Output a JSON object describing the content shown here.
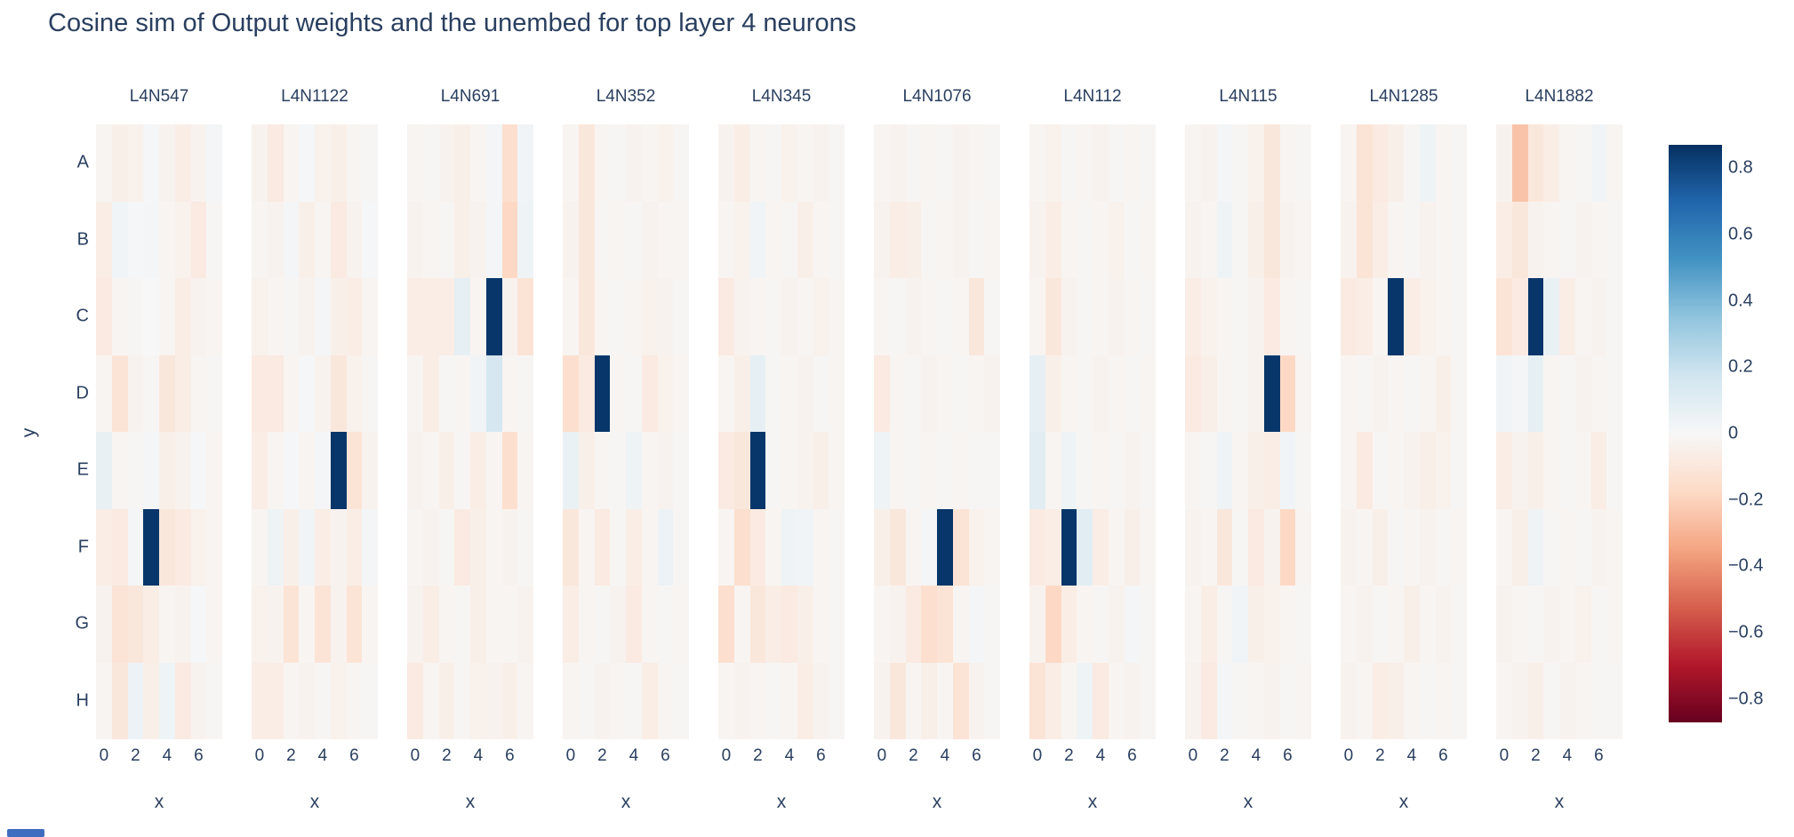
{
  "title": "Cosine sim of Output weights and the unembed for top layer 4 neurons",
  "colors": {
    "text": "#2a3f5f",
    "background": "#ffffff",
    "colorscale_rdbu": [
      "#67001f",
      "#b2182b",
      "#d6604d",
      "#f4a582",
      "#fddbc7",
      "#f7f7f7",
      "#d1e5f0",
      "#92c5de",
      "#4393c3",
      "#2166ac",
      "#053061"
    ]
  },
  "chart_data": {
    "type": "heatmap",
    "title": "Cosine sim of Output weights and the unembed for top layer 4 neurons",
    "xlabel": "x",
    "ylabel": "y",
    "x_tick_labels": [
      "0",
      "2",
      "4",
      "6"
    ],
    "x_tick_values": [
      0,
      2,
      4,
      6
    ],
    "x_range": [
      0,
      7
    ],
    "y_categories": [
      "A",
      "B",
      "C",
      "D",
      "E",
      "F",
      "G",
      "H"
    ],
    "zmin": -0.87,
    "zmax": 0.87,
    "legend_position": "right colorbar",
    "colorbar_tick_labels": [
      "0.8",
      "0.6",
      "0.4",
      "0.2",
      "0",
      "−0.2",
      "−0.4",
      "−0.6",
      "−0.8"
    ],
    "colorbar_tick_values": [
      0.8,
      0.6,
      0.4,
      0.2,
      0,
      -0.2,
      -0.4,
      -0.6,
      -0.8
    ],
    "facets": [
      {
        "name": "L4N547",
        "peak": {
          "x": 3,
          "y": "F",
          "value": 0.85
        },
        "z": [
          [
            -0.02,
            -0.05,
            -0.04,
            0.01,
            -0.03,
            -0.06,
            -0.03,
            0.02
          ],
          [
            -0.06,
            0.03,
            0.01,
            0.02,
            -0.02,
            -0.04,
            -0.08,
            -0.01
          ],
          [
            -0.08,
            -0.02,
            -0.01,
            0.0,
            -0.02,
            -0.06,
            -0.03,
            -0.02
          ],
          [
            -0.02,
            -0.12,
            -0.03,
            -0.01,
            -0.1,
            -0.06,
            -0.02,
            -0.01
          ],
          [
            0.07,
            -0.02,
            -0.01,
            0.02,
            -0.05,
            -0.03,
            0.01,
            -0.02
          ],
          [
            -0.06,
            -0.08,
            0.02,
            0.85,
            -0.1,
            -0.08,
            -0.04,
            -0.02
          ],
          [
            -0.03,
            -0.12,
            -0.1,
            -0.06,
            -0.02,
            -0.03,
            0.01,
            -0.02
          ],
          [
            -0.02,
            -0.1,
            0.05,
            -0.05,
            0.04,
            -0.08,
            -0.03,
            -0.01
          ]
        ]
      },
      {
        "name": "L4N1122",
        "peak": {
          "x": 5,
          "y": "E",
          "value": 0.85
        },
        "z": [
          [
            -0.03,
            -0.08,
            -0.02,
            0.01,
            -0.04,
            -0.05,
            -0.02,
            -0.01
          ],
          [
            -0.02,
            -0.03,
            0.02,
            -0.05,
            -0.02,
            -0.08,
            -0.03,
            0.01
          ],
          [
            -0.04,
            -0.02,
            -0.01,
            -0.03,
            0.02,
            -0.05,
            -0.06,
            -0.02
          ],
          [
            -0.08,
            -0.08,
            -0.02,
            0.01,
            -0.03,
            -0.1,
            -0.04,
            -0.01
          ],
          [
            -0.06,
            -0.02,
            0.01,
            -0.02,
            0.02,
            0.85,
            -0.12,
            -0.03
          ],
          [
            -0.02,
            0.04,
            -0.05,
            0.03,
            -0.06,
            -0.03,
            -0.06,
            0.02
          ],
          [
            -0.04,
            -0.03,
            -0.12,
            -0.02,
            -0.12,
            -0.03,
            -0.12,
            -0.02
          ],
          [
            -0.06,
            -0.06,
            -0.02,
            -0.03,
            -0.01,
            -0.04,
            -0.02,
            -0.01
          ]
        ]
      },
      {
        "name": "L4N691",
        "peak": {
          "x": 5,
          "y": "C",
          "value": 0.85
        },
        "z": [
          [
            -0.02,
            -0.01,
            -0.03,
            -0.05,
            -0.02,
            0.02,
            -0.15,
            0.03
          ],
          [
            -0.03,
            -0.02,
            -0.01,
            -0.05,
            -0.03,
            0.02,
            -0.18,
            0.04
          ],
          [
            -0.06,
            -0.06,
            -0.06,
            0.08,
            -0.02,
            0.85,
            -0.03,
            -0.12
          ],
          [
            -0.02,
            -0.06,
            -0.01,
            -0.02,
            0.03,
            0.15,
            -0.02,
            -0.01
          ],
          [
            -0.03,
            -0.02,
            -0.05,
            -0.01,
            -0.06,
            -0.02,
            -0.15,
            -0.02
          ],
          [
            -0.02,
            -0.03,
            -0.01,
            -0.08,
            -0.05,
            -0.02,
            -0.03,
            -0.01
          ],
          [
            -0.03,
            -0.06,
            -0.02,
            -0.01,
            -0.05,
            -0.02,
            -0.02,
            -0.03
          ],
          [
            -0.08,
            -0.02,
            -0.05,
            -0.01,
            -0.04,
            -0.03,
            -0.05,
            -0.02
          ]
        ]
      },
      {
        "name": "L4N352",
        "peak": {
          "x": 2,
          "y": "D",
          "value": 0.85
        },
        "z": [
          [
            -0.02,
            -0.1,
            -0.02,
            -0.01,
            -0.03,
            -0.02,
            -0.04,
            -0.01
          ],
          [
            -0.03,
            -0.1,
            -0.01,
            -0.02,
            -0.01,
            -0.03,
            -0.02,
            -0.02
          ],
          [
            -0.02,
            -0.1,
            -0.02,
            -0.01,
            -0.02,
            -0.04,
            -0.03,
            -0.01
          ],
          [
            -0.15,
            -0.08,
            0.85,
            -0.02,
            -0.01,
            -0.08,
            -0.04,
            -0.02
          ],
          [
            0.06,
            -0.05,
            -0.02,
            -0.01,
            0.04,
            -0.02,
            -0.03,
            -0.01
          ],
          [
            -0.1,
            -0.02,
            -0.08,
            -0.01,
            -0.06,
            -0.02,
            0.05,
            -0.01
          ],
          [
            -0.06,
            -0.02,
            -0.01,
            -0.03,
            -0.08,
            -0.02,
            -0.01,
            -0.02
          ],
          [
            -0.02,
            -0.01,
            -0.03,
            -0.02,
            -0.01,
            -0.06,
            -0.02,
            -0.01
          ]
        ]
      },
      {
        "name": "L4N345",
        "peak": {
          "x": 2,
          "y": "E",
          "value": 0.85
        },
        "z": [
          [
            -0.03,
            -0.06,
            -0.02,
            -0.01,
            -0.04,
            -0.02,
            -0.03,
            -0.01
          ],
          [
            -0.02,
            -0.04,
            0.03,
            -0.02,
            -0.01,
            -0.05,
            -0.02,
            -0.01
          ],
          [
            -0.08,
            -0.03,
            -0.02,
            -0.01,
            -0.03,
            -0.02,
            -0.04,
            -0.02
          ],
          [
            -0.02,
            -0.05,
            0.08,
            -0.01,
            -0.02,
            -0.03,
            -0.01,
            -0.02
          ],
          [
            -0.08,
            -0.1,
            0.85,
            -0.01,
            -0.02,
            -0.03,
            -0.05,
            -0.02
          ],
          [
            -0.02,
            -0.15,
            -0.08,
            -0.02,
            0.04,
            0.03,
            -0.02,
            -0.01
          ],
          [
            -0.15,
            -0.02,
            -0.1,
            -0.06,
            -0.08,
            -0.05,
            -0.02,
            -0.01
          ],
          [
            -0.02,
            -0.03,
            -0.02,
            -0.01,
            -0.02,
            -0.06,
            -0.03,
            -0.01
          ]
        ]
      },
      {
        "name": "L4N1076",
        "peak": {
          "x": 4,
          "y": "F",
          "value": 0.85
        },
        "z": [
          [
            -0.02,
            -0.03,
            -0.01,
            -0.02,
            -0.01,
            -0.03,
            -0.02,
            -0.01
          ],
          [
            -0.03,
            -0.06,
            -0.05,
            -0.01,
            -0.02,
            -0.03,
            -0.01,
            -0.02
          ],
          [
            -0.02,
            -0.01,
            -0.03,
            -0.02,
            -0.01,
            -0.02,
            -0.1,
            -0.01
          ],
          [
            -0.08,
            -0.02,
            -0.01,
            -0.03,
            -0.02,
            -0.01,
            -0.02,
            -0.03
          ],
          [
            0.04,
            -0.02,
            -0.01,
            -0.02,
            -0.01,
            -0.02,
            -0.01,
            -0.01
          ],
          [
            -0.05,
            -0.1,
            -0.02,
            0.02,
            0.85,
            -0.12,
            -0.04,
            -0.02
          ],
          [
            -0.02,
            -0.03,
            -0.08,
            -0.15,
            -0.12,
            -0.02,
            0.02,
            -0.01
          ],
          [
            -0.03,
            -0.1,
            -0.02,
            -0.05,
            -0.02,
            -0.12,
            -0.03,
            -0.01
          ]
        ]
      },
      {
        "name": "L4N112",
        "peak": {
          "x": 2,
          "y": "F",
          "value": 0.85
        },
        "z": [
          [
            -0.02,
            -0.04,
            -0.01,
            -0.02,
            -0.03,
            -0.01,
            -0.02,
            -0.01
          ],
          [
            -0.03,
            -0.06,
            -0.02,
            -0.01,
            -0.02,
            -0.04,
            -0.01,
            -0.02
          ],
          [
            -0.02,
            -0.1,
            -0.03,
            -0.01,
            -0.02,
            -0.03,
            -0.02,
            -0.01
          ],
          [
            0.08,
            -0.05,
            -0.02,
            -0.01,
            -0.03,
            -0.02,
            -0.01,
            -0.02
          ],
          [
            0.1,
            -0.02,
            0.04,
            -0.01,
            -0.02,
            -0.01,
            -0.03,
            -0.01
          ],
          [
            -0.08,
            -0.06,
            0.85,
            0.1,
            -0.06,
            -0.02,
            -0.05,
            -0.02
          ],
          [
            -0.03,
            -0.18,
            -0.06,
            -0.02,
            -0.01,
            -0.03,
            0.02,
            -0.01
          ],
          [
            -0.12,
            -0.06,
            -0.02,
            0.04,
            -0.08,
            -0.02,
            -0.03,
            -0.01
          ]
        ]
      },
      {
        "name": "L4N115",
        "peak": {
          "x": 5,
          "y": "D",
          "value": 0.85
        },
        "z": [
          [
            -0.02,
            -0.03,
            0.02,
            -0.01,
            -0.04,
            -0.1,
            -0.02,
            -0.01
          ],
          [
            -0.03,
            -0.02,
            0.04,
            -0.01,
            -0.05,
            -0.1,
            -0.03,
            -0.02
          ],
          [
            -0.06,
            -0.04,
            -0.02,
            -0.01,
            -0.03,
            -0.08,
            -0.02,
            -0.01
          ],
          [
            -0.08,
            -0.05,
            -0.02,
            -0.01,
            -0.03,
            0.85,
            -0.18,
            -0.02
          ],
          [
            -0.02,
            -0.01,
            0.04,
            -0.02,
            -0.05,
            -0.06,
            0.03,
            -0.01
          ],
          [
            -0.03,
            -0.02,
            -0.1,
            -0.01,
            -0.08,
            -0.03,
            -0.18,
            -0.02
          ],
          [
            -0.02,
            -0.06,
            -0.01,
            0.03,
            -0.05,
            -0.04,
            -0.02,
            -0.01
          ],
          [
            -0.03,
            -0.08,
            0.02,
            -0.01,
            -0.02,
            -0.03,
            -0.01,
            -0.02
          ]
        ]
      },
      {
        "name": "L4N1285",
        "peak": {
          "x": 3,
          "y": "C",
          "value": 0.85
        },
        "z": [
          [
            -0.02,
            -0.12,
            -0.08,
            -0.05,
            -0.01,
            0.04,
            -0.02,
            -0.01
          ],
          [
            -0.03,
            -0.12,
            -0.06,
            -0.02,
            -0.01,
            -0.03,
            -0.02,
            -0.01
          ],
          [
            -0.08,
            -0.06,
            -0.02,
            0.85,
            -0.06,
            -0.04,
            -0.02,
            -0.01
          ],
          [
            -0.02,
            -0.01,
            -0.03,
            -0.02,
            -0.01,
            -0.02,
            -0.05,
            -0.01
          ],
          [
            -0.02,
            -0.08,
            -0.01,
            -0.02,
            -0.03,
            -0.05,
            -0.04,
            -0.01
          ],
          [
            -0.03,
            -0.02,
            -0.05,
            -0.01,
            -0.02,
            -0.03,
            -0.01,
            -0.02
          ],
          [
            -0.02,
            -0.03,
            -0.01,
            -0.02,
            -0.05,
            -0.02,
            -0.03,
            -0.01
          ],
          [
            -0.03,
            -0.02,
            -0.06,
            -0.05,
            -0.02,
            -0.01,
            -0.02,
            -0.01
          ]
        ]
      },
      {
        "name": "L4N1882",
        "peak": {
          "x": 2,
          "y": "C",
          "value": 0.85
        },
        "z": [
          [
            -0.03,
            -0.25,
            -0.1,
            -0.06,
            -0.02,
            -0.01,
            0.03,
            -0.02
          ],
          [
            -0.06,
            -0.1,
            -0.03,
            -0.02,
            -0.01,
            -0.03,
            -0.02,
            -0.01
          ],
          [
            -0.12,
            -0.08,
            0.85,
            0.06,
            -0.06,
            -0.02,
            -0.03,
            -0.01
          ],
          [
            0.03,
            0.02,
            0.08,
            -0.02,
            -0.01,
            -0.03,
            -0.02,
            -0.01
          ],
          [
            -0.06,
            -0.03,
            -0.05,
            -0.02,
            -0.01,
            -0.02,
            -0.06,
            -0.01
          ],
          [
            -0.02,
            -0.05,
            0.04,
            -0.01,
            -0.02,
            -0.01,
            -0.03,
            -0.02
          ],
          [
            -0.03,
            -0.02,
            -0.01,
            -0.03,
            -0.02,
            -0.04,
            -0.01,
            -0.02
          ],
          [
            -0.02,
            -0.03,
            -0.05,
            -0.01,
            -0.03,
            -0.02,
            -0.01,
            -0.01
          ]
        ]
      }
    ]
  }
}
